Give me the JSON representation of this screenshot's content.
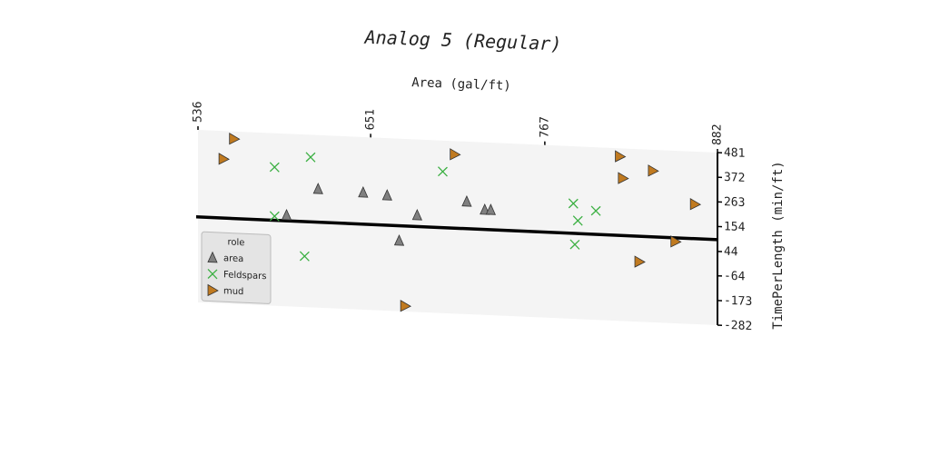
{
  "chart_data": {
    "type": "scatter",
    "title": "Analog 5 (Regular)",
    "x_label": "Area (gal/ft)",
    "y_label": "TimePerLength (min/ft)",
    "xlim": [
      536,
      882
    ],
    "xticks": [
      536,
      651,
      767,
      882
    ],
    "ylim": [
      -282,
      481
    ],
    "yticks": [
      481,
      372,
      263,
      154,
      44,
      -64,
      -173,
      -282
    ],
    "hline": 96,
    "legend_title": "role",
    "legend_position": "lower left",
    "series": [
      {
        "name": "area",
        "color": "#808080",
        "marker": "triangle-up",
        "x": [
          595,
          616,
          646,
          662,
          682,
          670,
          715,
          727,
          731
        ],
        "values": [
          121,
          243,
          236,
          228,
          146,
          30,
          216,
          183,
          184
        ]
      },
      {
        "name": "Feldspars",
        "color": "#3cb043",
        "marker": "x",
        "x": [
          587,
          611,
          587,
          607,
          699,
          786,
          789,
          801,
          787
        ],
        "values": [
          331,
          382,
          114,
          -57,
          344,
          228,
          153,
          200,
          47
        ]
      },
      {
        "name": "mud",
        "color": "#c07a20",
        "marker": "triangle-right",
        "x": [
          560,
          553,
          707,
          674,
          817,
          819,
          839,
          867,
          854,
          830
        ],
        "values": [
          448,
          357,
          422,
          -258,
          445,
          349,
          388,
          248,
          79,
          -17
        ]
      }
    ]
  }
}
